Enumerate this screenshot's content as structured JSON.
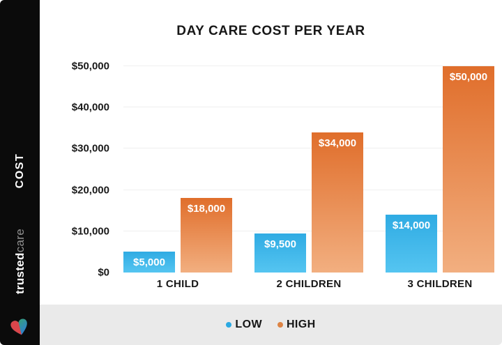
{
  "sidebar": {
    "axis_label": "COST",
    "brand_bold": "trusted",
    "brand_light": "care",
    "logo_icon": "trustedcare-heart-icon"
  },
  "chart_data": {
    "type": "bar",
    "title": "DAY CARE COST PER YEAR",
    "categories": [
      "1 CHILD",
      "2 CHILDREN",
      "3 CHILDREN"
    ],
    "series": [
      {
        "name": "LOW",
        "values": [
          5000,
          9500,
          14000
        ],
        "labels": [
          "$5,000",
          "$9,500",
          "$14,000"
        ],
        "color_top": "#2fabe3",
        "color_bottom": "#55c5f1",
        "legend_color": "#2ba9e2"
      },
      {
        "name": "HIGH",
        "values": [
          18000,
          34000,
          50000
        ],
        "labels": [
          "$18,000",
          "$34,000",
          "$50,000"
        ],
        "color_top": "#e06e2b",
        "color_bottom": "#f2af80",
        "legend_color": "#dd8445"
      }
    ],
    "xlabel": "",
    "ylabel": "COST",
    "ylim": [
      0,
      50000
    ],
    "yticks": [
      {
        "value": 50000,
        "label": "$50,000"
      },
      {
        "value": 40000,
        "label": "$40,000"
      },
      {
        "value": 30000,
        "label": "$30,000"
      },
      {
        "value": 20000,
        "label": "$20,000"
      },
      {
        "value": 10000,
        "label": "$10,000"
      },
      {
        "value": 0,
        "label": "$0"
      }
    ],
    "grid": true,
    "legend_position": "bottom"
  },
  "colors": {
    "sidebar_bg": "#0b0b0b",
    "legend_band_bg": "#eaeaea",
    "gridline": "#efefef",
    "title_text": "#171717",
    "logo_red": "#d9464b",
    "logo_green": "#3aa95c",
    "logo_blue": "#2d7fd4"
  }
}
